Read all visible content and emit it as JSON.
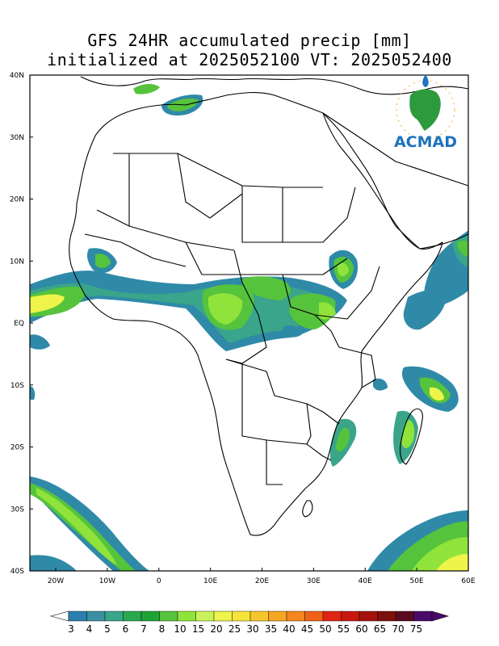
{
  "title": {
    "line1": "GFS 24HR accumulated precip [mm]",
    "line2": "initialized at 2025052100 VT: 2025052400"
  },
  "logo": {
    "text": "ACMAD",
    "colors": {
      "text": "#1e73be",
      "continent": "#2e9a3e",
      "rays": "#f5a623",
      "drop": "#1e73be"
    }
  },
  "axes": {
    "lat_labels": [
      "40N",
      "30N",
      "20N",
      "10N",
      "EQ",
      "10S",
      "20S",
      "30S",
      "40S"
    ],
    "lon_labels": [
      "20W",
      "10W",
      "0",
      "10E",
      "20E",
      "30E",
      "40E",
      "50E",
      "60E"
    ]
  },
  "colorbar": {
    "labels": [
      "3",
      "4",
      "5",
      "6",
      "7",
      "8",
      "10",
      "15",
      "20",
      "25",
      "30",
      "35",
      "40",
      "45",
      "50",
      "55",
      "60",
      "65",
      "70",
      "75"
    ],
    "colors": [
      "#2b7fb0",
      "#3a90a0",
      "#3aa58a",
      "#2aa84f",
      "#1fa334",
      "#56c33c",
      "#8fe33a",
      "#c9f25a",
      "#eef44a",
      "#f7e43a",
      "#f5c62c",
      "#f5a623",
      "#f3861e",
      "#ee6318",
      "#e02513",
      "#c8170f",
      "#a3120c",
      "#7d0f0a",
      "#5a0a1e",
      "#4a0a6a"
    ]
  },
  "precip_colors": {
    "light": "#2f8aa8",
    "teal": "#3aa58a",
    "green": "#56c33c",
    "lime": "#8fe33a",
    "yellow": "#eef44a"
  }
}
